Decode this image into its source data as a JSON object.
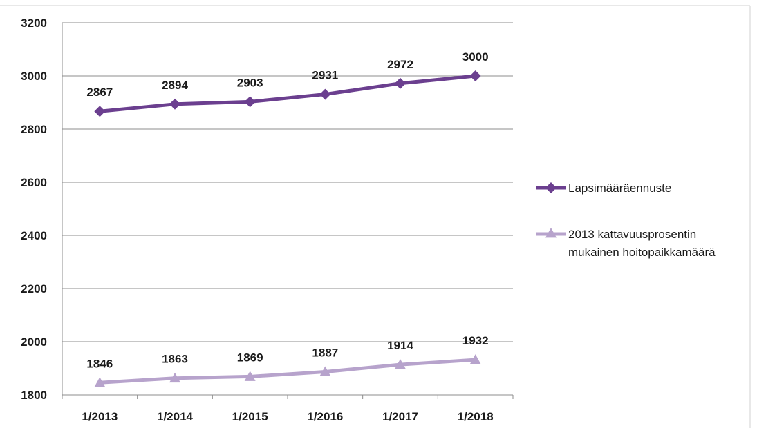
{
  "chart_data": {
    "type": "line",
    "categories": [
      "1/2013",
      "1/2014",
      "1/2015",
      "1/2016",
      "1/2017",
      "1/2018"
    ],
    "ylim": [
      1800,
      3200
    ],
    "yticks": [
      1800,
      2000,
      2200,
      2400,
      2600,
      2800,
      3000,
      3200
    ],
    "grid": true,
    "legend_position": "right",
    "series": [
      {
        "name": "Lapsimääräennuste",
        "values": [
          2867,
          2894,
          2903,
          2931,
          2972,
          3000
        ],
        "color": "#6b3f8f",
        "marker": "diamond"
      },
      {
        "name_lines": [
          "2013 kattavuusprosentin",
          "mukainen hoitopaikkamäärä"
        ],
        "values": [
          1846,
          1863,
          1869,
          1887,
          1914,
          1932
        ],
        "color": "#b7a3cc",
        "marker": "triangle"
      }
    ]
  }
}
